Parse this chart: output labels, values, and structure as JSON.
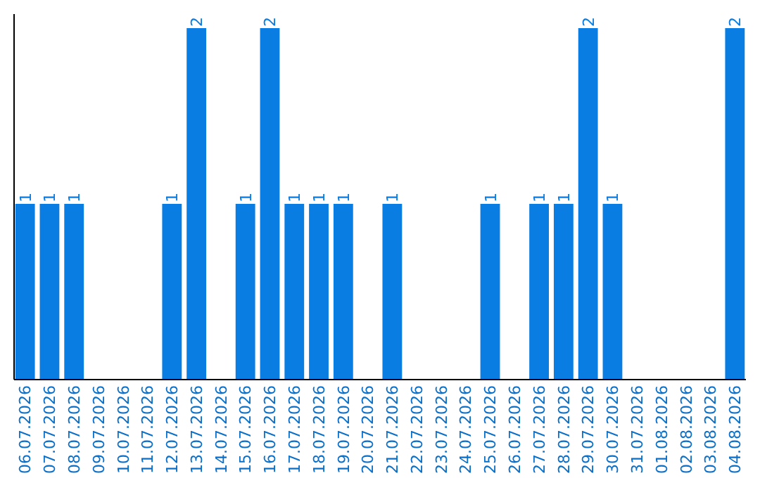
{
  "chart_data": {
    "type": "bar",
    "categories": [
      "06.07.2026",
      "07.07.2026",
      "08.07.2026",
      "09.07.2026",
      "10.07.2026",
      "11.07.2026",
      "12.07.2026",
      "13.07.2026",
      "14.07.2026",
      "15.07.2026",
      "16.07.2026",
      "17.07.2026",
      "18.07.2026",
      "19.07.2026",
      "20.07.2026",
      "21.07.2026",
      "22.07.2026",
      "23.07.2026",
      "24.07.2026",
      "25.07.2026",
      "26.07.2026",
      "27.07.2026",
      "28.07.2026",
      "29.07.2026",
      "30.07.2026",
      "31.07.2026",
      "01.08.2026",
      "02.08.2026",
      "03.08.2026",
      "04.08.2026"
    ],
    "values": [
      1,
      1,
      1,
      0,
      0,
      0,
      1,
      2,
      0,
      1,
      2,
      1,
      1,
      1,
      0,
      1,
      0,
      0,
      0,
      1,
      0,
      1,
      1,
      2,
      1,
      0,
      0,
      0,
      0,
      2
    ],
    "value_labels": [
      "1",
      "1",
      "1",
      null,
      null,
      null,
      "1",
      "2",
      null,
      "1",
      "2",
      "1",
      "1",
      "1",
      null,
      "1",
      null,
      null,
      null,
      "1",
      null,
      "1",
      "1",
      "2",
      "1",
      null,
      null,
      null,
      null,
      "2"
    ],
    "color": "#0a7de3",
    "ylim": [
      0,
      2.08
    ],
    "tick_labels": "x",
    "grid": false
  }
}
